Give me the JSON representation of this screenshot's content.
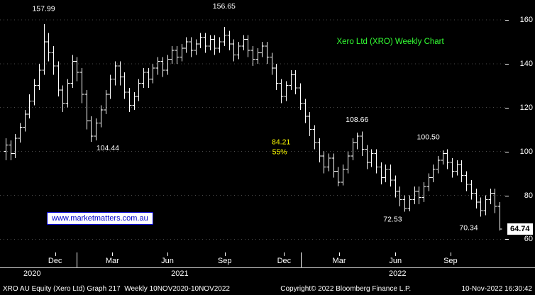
{
  "watermark": "www.marketmatters.com.au",
  "last_price": "64.74",
  "footer": {
    "left": "XRO AU Equity (Xero Ltd) Graph 217  Weekly 10NOV2020-10NOV2022",
    "copyright": "Copyright© 2022 Bloomberg Finance L.P.",
    "datetime": "10-Nov-2022 16:30:42"
  },
  "colors": {
    "background": "#000000",
    "bar": "#ffffff",
    "grid": "#4a4a4a",
    "axis_text": "#ffffff",
    "title_green": "#33ff33",
    "annotation_yellow": "#ffff00",
    "watermark_blue": "#0000cc",
    "last_price_bg": "#ffffff"
  },
  "chart_data": {
    "type": "bar",
    "subtype": "weekly-ohlc-bars",
    "title": "Xero Ltd (XRO) Weekly Chart",
    "period": "Weekly 10NOV2020-10NOV2022",
    "ylim": [
      54,
      169
    ],
    "yticks": [
      60,
      80,
      100,
      120,
      140,
      160
    ],
    "grid": "dotted-horizontal",
    "last_price": 64.74,
    "x_axis": {
      "months": [
        {
          "label": "Dec",
          "x_pct": 10.3
        },
        {
          "label": "Mar",
          "x_pct": 21.0
        },
        {
          "label": "Jun",
          "x_pct": 31.3
        },
        {
          "label": "Sep",
          "x_pct": 42.0
        },
        {
          "label": "Dec",
          "x_pct": 53.1
        },
        {
          "label": "Mar",
          "x_pct": 63.4
        },
        {
          "label": "Jun",
          "x_pct": 73.9
        },
        {
          "label": "Sep",
          "x_pct": 84.2
        }
      ],
      "years": [
        {
          "label": "2020",
          "x_pct": 6.0
        },
        {
          "label": "2021",
          "x_pct": 33.6
        },
        {
          "label": "2022",
          "x_pct": 74.3
        }
      ],
      "year_dividers_pct": [
        14.3,
        56.2
      ]
    },
    "ohlc": [
      [
        100,
        106,
        96,
        103
      ],
      [
        103,
        105,
        96,
        99
      ],
      [
        99,
        108,
        97,
        106
      ],
      [
        106,
        113,
        104,
        111
      ],
      [
        111,
        119,
        109,
        117
      ],
      [
        117,
        126,
        115,
        123
      ],
      [
        123,
        133,
        121,
        130
      ],
      [
        130,
        140,
        128,
        137
      ],
      [
        137,
        157.99,
        135,
        150
      ],
      [
        150,
        154,
        141,
        145
      ],
      [
        145,
        148,
        135,
        139
      ],
      [
        139,
        141,
        125,
        128
      ],
      [
        128,
        130,
        118,
        122
      ],
      [
        122,
        133,
        120,
        131
      ],
      [
        131,
        144,
        129,
        141
      ],
      [
        141,
        143,
        132,
        136
      ],
      [
        136,
        138,
        122,
        126
      ],
      [
        126,
        128,
        110,
        114
      ],
      [
        114,
        116,
        104.44,
        107
      ],
      [
        107,
        115,
        105,
        113
      ],
      [
        113,
        121,
        111,
        119
      ],
      [
        119,
        128,
        117,
        126
      ],
      [
        126,
        135,
        124,
        133
      ],
      [
        133,
        141,
        130,
        139
      ],
      [
        139,
        141,
        130,
        134
      ],
      [
        134,
        136,
        124,
        127
      ],
      [
        127,
        129,
        118,
        121
      ],
      [
        121,
        127,
        119,
        125
      ],
      [
        125,
        133,
        123,
        131
      ],
      [
        131,
        138,
        129,
        136
      ],
      [
        136,
        138,
        129,
        133
      ],
      [
        133,
        140,
        131,
        138
      ],
      [
        138,
        143,
        135,
        141
      ],
      [
        141,
        143,
        134,
        137
      ],
      [
        137,
        144,
        135,
        142
      ],
      [
        142,
        148,
        140,
        146
      ],
      [
        146,
        148,
        140,
        143
      ],
      [
        143,
        149,
        141,
        147
      ],
      [
        147,
        152,
        145,
        150
      ],
      [
        150,
        152,
        143,
        146
      ],
      [
        146,
        151,
        144,
        149
      ],
      [
        149,
        154,
        147,
        152
      ],
      [
        152,
        154,
        145,
        148
      ],
      [
        148,
        153,
        146,
        151
      ],
      [
        151,
        153,
        144,
        147
      ],
      [
        147,
        152,
        145,
        150
      ],
      [
        150,
        156.65,
        148,
        153
      ],
      [
        153,
        155,
        146,
        149
      ],
      [
        149,
        151,
        141,
        144
      ],
      [
        144,
        150,
        142,
        148
      ],
      [
        148,
        153,
        146,
        151
      ],
      [
        151,
        153,
        143,
        146
      ],
      [
        146,
        148,
        139,
        142
      ],
      [
        142,
        147,
        140,
        145
      ],
      [
        145,
        150,
        143,
        148
      ],
      [
        148,
        150,
        140,
        143
      ],
      [
        143,
        145,
        135,
        138
      ],
      [
        138,
        140,
        128,
        131
      ],
      [
        131,
        133,
        122,
        125
      ],
      [
        125,
        132,
        123,
        130
      ],
      [
        130,
        137,
        128,
        135
      ],
      [
        135,
        137,
        126,
        129
      ],
      [
        129,
        131,
        119,
        122
      ],
      [
        122,
        124,
        113,
        116
      ],
      [
        116,
        118,
        107,
        110
      ],
      [
        110,
        112,
        101,
        104
      ],
      [
        104,
        106,
        95,
        98
      ],
      [
        98,
        100,
        90,
        93
      ],
      [
        93,
        99,
        91,
        97
      ],
      [
        97,
        99,
        88,
        91
      ],
      [
        91,
        93,
        84.21,
        86
      ],
      [
        86,
        94,
        84.5,
        92
      ],
      [
        92,
        100,
        90,
        98
      ],
      [
        98,
        106,
        96,
        104
      ],
      [
        104,
        108.66,
        101,
        107
      ],
      [
        107,
        109,
        98,
        101
      ],
      [
        101,
        103,
        92,
        95
      ],
      [
        95,
        101,
        93,
        99
      ],
      [
        99,
        101,
        90,
        93
      ],
      [
        93,
        95,
        85,
        88
      ],
      [
        88,
        94,
        86,
        92
      ],
      [
        92,
        94,
        84,
        87
      ],
      [
        87,
        89,
        79,
        82
      ],
      [
        82,
        84,
        75,
        78
      ],
      [
        78,
        80,
        72.53,
        74
      ],
      [
        74,
        80,
        72.8,
        78
      ],
      [
        78,
        84,
        76,
        82
      ],
      [
        82,
        84,
        76,
        79
      ],
      [
        79,
        86,
        77,
        84
      ],
      [
        84,
        90,
        82,
        88
      ],
      [
        88,
        94,
        86,
        92
      ],
      [
        92,
        98,
        90,
        96
      ],
      [
        96,
        100.5,
        94,
        99
      ],
      [
        99,
        101,
        92,
        95
      ],
      [
        95,
        97,
        88,
        91
      ],
      [
        91,
        96,
        89,
        94
      ],
      [
        94,
        96,
        86,
        89
      ],
      [
        89,
        91,
        82,
        85
      ],
      [
        85,
        87,
        78,
        81
      ],
      [
        81,
        83,
        74,
        77
      ],
      [
        77,
        79,
        70.34,
        73
      ],
      [
        73,
        80,
        71,
        78
      ],
      [
        78,
        83,
        76,
        81
      ],
      [
        81,
        83,
        72,
        75
      ],
      [
        75,
        77,
        64,
        64.74
      ]
    ],
    "annotations": [
      {
        "name": "peak-jan-2021-label",
        "text": "157.99",
        "week": 8,
        "price": 164,
        "color": "#ffffff"
      },
      {
        "name": "low-mar-2021-label",
        "text": "104.44",
        "week": 21.5,
        "price": 100.5,
        "color": "#ffffff"
      },
      {
        "name": "peak-sep-2021-label",
        "text": "156.65",
        "week": 46,
        "price": 165.2,
        "color": "#ffffff"
      },
      {
        "name": "chart-title",
        "text": "Xero Ltd (XRO) Weekly Chart",
        "week": 81,
        "price": 149,
        "color": "#33ff33",
        "size": 11.5
      },
      {
        "name": "retrace-price-label",
        "text": "84.21",
        "week": 58,
        "price": 103.3,
        "color": "#ffff00"
      },
      {
        "name": "retrace-pct-label",
        "text": "55%",
        "week": 57.7,
        "price": 98.7,
        "color": "#ffff00"
      },
      {
        "name": "high-apr-2022-label",
        "text": "108.66",
        "week": 74,
        "price": 113.5,
        "color": "#ffffff"
      },
      {
        "name": "high-aug-2022-label",
        "text": "100.50",
        "week": 89,
        "price": 105.5,
        "color": "#ffffff"
      },
      {
        "name": "low-jun-2022-label",
        "text": "72.53",
        "week": 81.5,
        "price": 68,
        "color": "#ffffff"
      },
      {
        "name": "low-oct-2022-label",
        "text": "70.34",
        "week": 97.5,
        "price": 64.2,
        "color": "#ffffff"
      }
    ]
  }
}
